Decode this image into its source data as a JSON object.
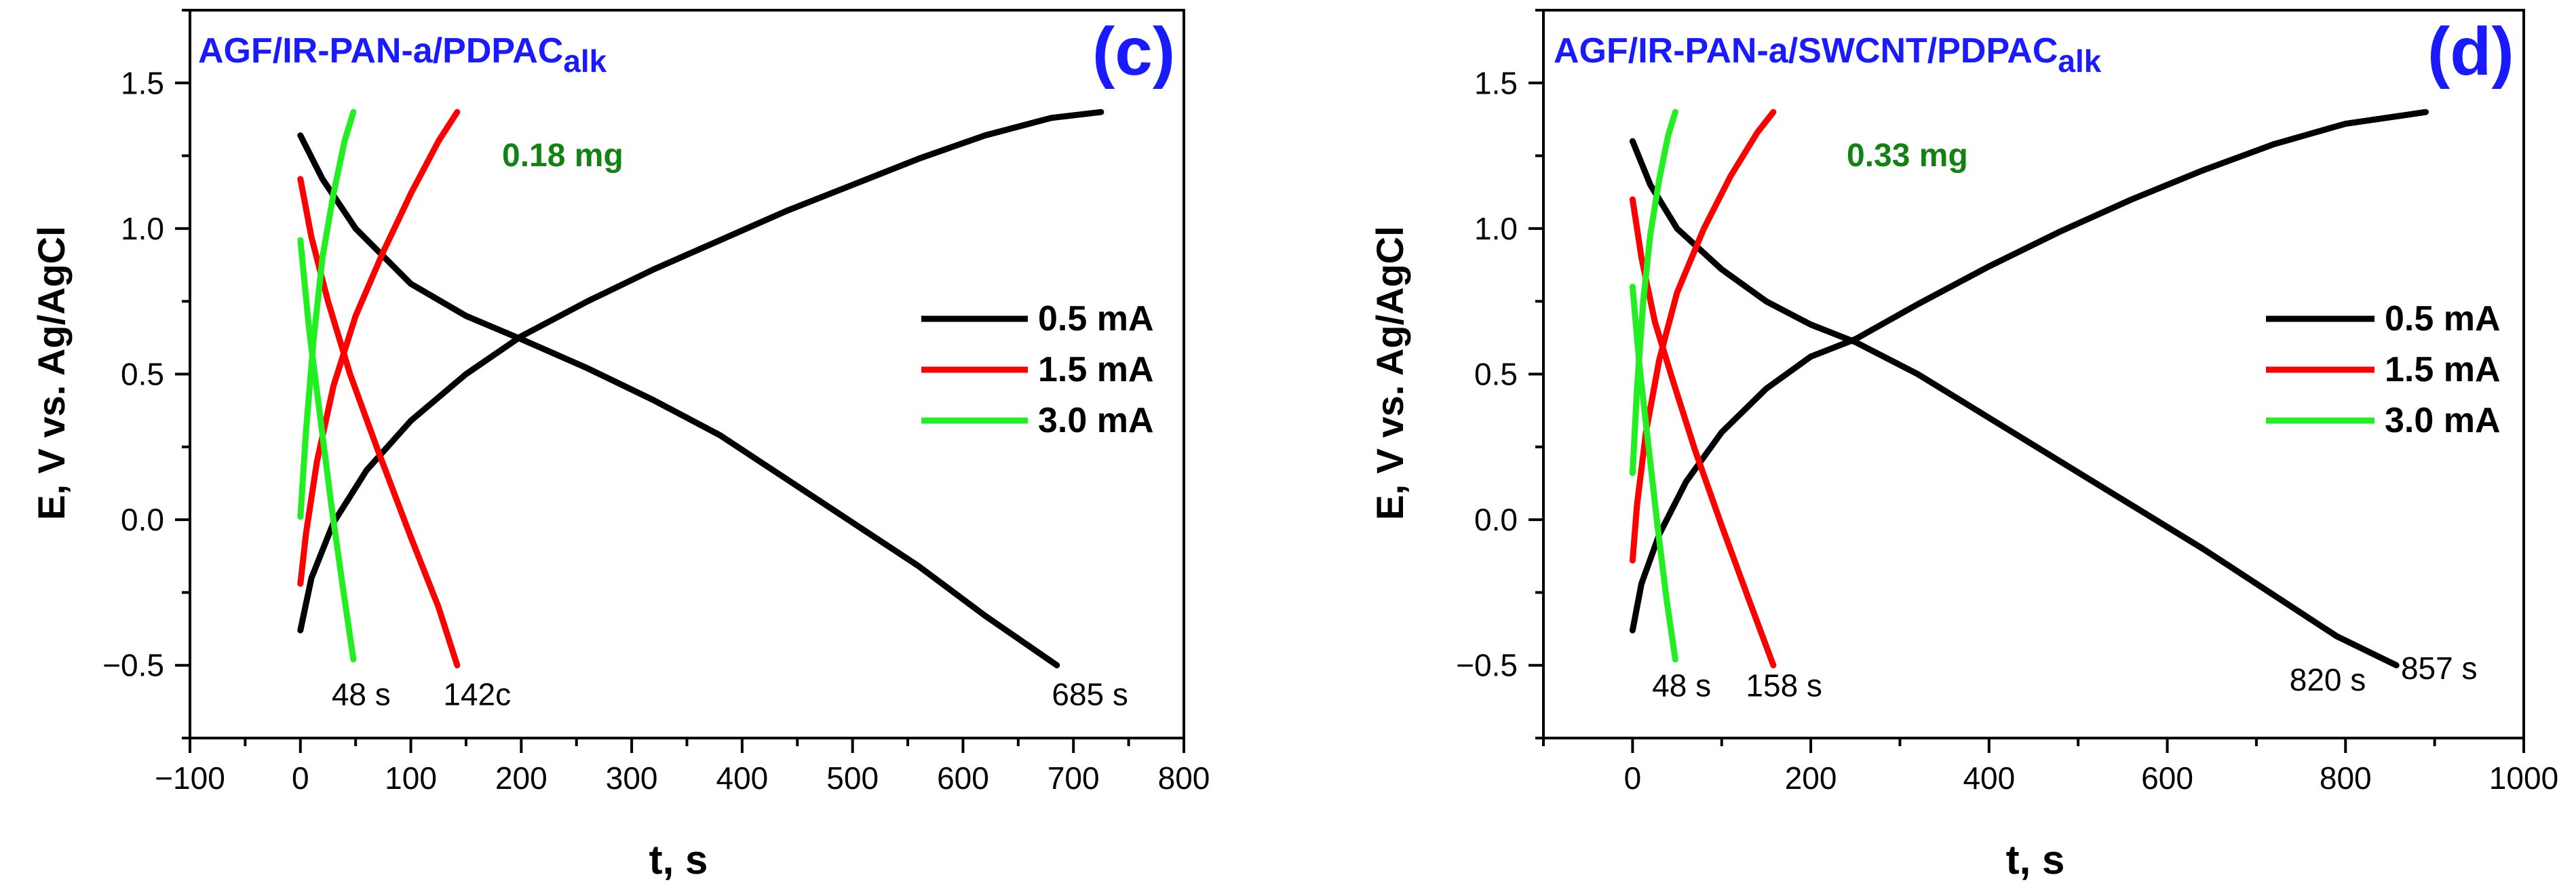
{
  "chart_data": [
    {
      "panel": "c",
      "type": "line",
      "panel_label": "(c)",
      "title": {
        "main": "AGF/IR-PAN-a/PDPAC",
        "sub": "alk"
      },
      "xlabel": "t, s",
      "ylabel": "E, V vs. Ag/AgCl",
      "xlim": [
        -100,
        800
      ],
      "ylim": [
        -0.75,
        1.75
      ],
      "xticks": [
        -100,
        0,
        100,
        200,
        300,
        400,
        500,
        600,
        700,
        800
      ],
      "xtick_labels": [
        "−100",
        "0",
        "100",
        "200",
        "300",
        "400",
        "500",
        "600",
        "700",
        "800"
      ],
      "yticks": [
        -0.5,
        0.0,
        0.5,
        1.0,
        1.5
      ],
      "ytick_labels": [
        "−0.5",
        "0.0",
        "0.5",
        "1.0",
        "1.5"
      ],
      "mass_label": "0.18 mg",
      "legend": [
        {
          "label": "0.5 mA",
          "color": "#000000"
        },
        {
          "label": "1.5 mA",
          "color": "#ff0000"
        },
        {
          "label": "3.0 mA",
          "color": "#22ee22"
        }
      ],
      "annotations": [
        {
          "text": "48 s",
          "x": 55,
          "y": -0.6
        },
        {
          "text": "142c",
          "x": 160,
          "y": -0.6
        },
        {
          "text": "685 s",
          "x": 715,
          "y": -0.6
        }
      ],
      "series": [
        {
          "name": "0.5 mA charge",
          "color": "#000000",
          "x": [
            0,
            10,
            30,
            60,
            100,
            150,
            200,
            260,
            320,
            380,
            440,
            500,
            560,
            620,
            680,
            725
          ],
          "y": [
            -0.38,
            -0.2,
            -0.01,
            0.17,
            0.34,
            0.5,
            0.63,
            0.75,
            0.86,
            0.96,
            1.06,
            1.15,
            1.24,
            1.32,
            1.38,
            1.4
          ]
        },
        {
          "name": "0.5 mA discharge",
          "color": "#000000",
          "x": [
            0,
            20,
            50,
            100,
            150,
            200,
            260,
            320,
            380,
            440,
            500,
            560,
            620,
            685
          ],
          "y": [
            1.32,
            1.17,
            1.0,
            0.81,
            0.7,
            0.62,
            0.52,
            0.41,
            0.29,
            0.14,
            -0.01,
            -0.16,
            -0.33,
            -0.5
          ]
        },
        {
          "name": "1.5 mA charge",
          "color": "#ff0000",
          "x": [
            0,
            5,
            15,
            30,
            50,
            75,
            100,
            125,
            142
          ],
          "y": [
            -0.22,
            -0.05,
            0.2,
            0.46,
            0.7,
            0.92,
            1.12,
            1.3,
            1.4
          ]
        },
        {
          "name": "1.5 mA discharge",
          "color": "#ff0000",
          "x": [
            0,
            10,
            25,
            45,
            70,
            100,
            125,
            142
          ],
          "y": [
            1.17,
            0.97,
            0.75,
            0.5,
            0.24,
            -0.06,
            -0.3,
            -0.5
          ]
        },
        {
          "name": "3.0 mA charge",
          "color": "#22ee22",
          "x": [
            0,
            5,
            12,
            20,
            30,
            40,
            48
          ],
          "y": [
            0.01,
            0.3,
            0.62,
            0.9,
            1.12,
            1.3,
            1.4
          ]
        },
        {
          "name": "3.0 mA discharge",
          "color": "#22ee22",
          "x": [
            0,
            8,
            18,
            28,
            38,
            48
          ],
          "y": [
            0.96,
            0.65,
            0.35,
            0.05,
            -0.22,
            -0.48
          ]
        }
      ]
    },
    {
      "panel": "d",
      "type": "line",
      "panel_label": "(d)",
      "title": {
        "main": "AGF/IR-PAN-a/SWCNT/PDPAC",
        "sub": "alk"
      },
      "xlabel": "t, s",
      "ylabel": "E, V vs. Ag/AgCl",
      "xlim": [
        -100,
        1000
      ],
      "ylim": [
        -0.75,
        1.75
      ],
      "xticks": [
        0,
        200,
        400,
        600,
        800,
        1000
      ],
      "xtick_labels": [
        "0",
        "200",
        "400",
        "600",
        "800",
        "1000"
      ],
      "yticks": [
        -0.5,
        0.0,
        0.5,
        1.0,
        1.5
      ],
      "ytick_labels": [
        "−0.5",
        "0.0",
        "0.5",
        "1.0",
        "1.5"
      ],
      "mass_label": "0.33 mg",
      "legend": [
        {
          "label": "0.5 mA",
          "color": "#000000"
        },
        {
          "label": "1.5 mA",
          "color": "#ff0000"
        },
        {
          "label": "3.0 mA",
          "color": "#22ee22"
        }
      ],
      "annotations": [
        {
          "text": "48 s",
          "x": 55,
          "y": -0.57
        },
        {
          "text": "158 s",
          "x": 170,
          "y": -0.57
        },
        {
          "text": "820 s",
          "x": 780,
          "y": -0.55
        },
        {
          "text": "857 s",
          "x": 905,
          "y": -0.51
        }
      ],
      "series": [
        {
          "name": "0.5 mA charge",
          "color": "#000000",
          "x": [
            0,
            10,
            30,
            60,
            100,
            150,
            200,
            250,
            320,
            400,
            480,
            560,
            640,
            720,
            800,
            890
          ],
          "y": [
            -0.38,
            -0.22,
            -0.05,
            0.13,
            0.3,
            0.45,
            0.56,
            0.62,
            0.74,
            0.87,
            0.99,
            1.1,
            1.2,
            1.29,
            1.36,
            1.4
          ]
        },
        {
          "name": "0.5 mA discharge",
          "color": "#000000",
          "x": [
            0,
            20,
            50,
            100,
            150,
            200,
            250,
            320,
            400,
            480,
            560,
            640,
            720,
            790,
            857
          ],
          "y": [
            1.3,
            1.15,
            1.0,
            0.86,
            0.75,
            0.67,
            0.61,
            0.5,
            0.35,
            0.2,
            0.05,
            -0.1,
            -0.26,
            -0.4,
            -0.5
          ]
        },
        {
          "name": "1.5 mA charge",
          "color": "#ff0000",
          "x": [
            0,
            5,
            15,
            30,
            50,
            80,
            110,
            140,
            158
          ],
          "y": [
            -0.14,
            0.05,
            0.3,
            0.55,
            0.78,
            1.0,
            1.18,
            1.33,
            1.4
          ]
        },
        {
          "name": "1.5 mA discharge",
          "color": "#ff0000",
          "x": [
            0,
            10,
            25,
            45,
            70,
            100,
            130,
            158
          ],
          "y": [
            1.1,
            0.9,
            0.68,
            0.48,
            0.24,
            -0.02,
            -0.27,
            -0.5
          ]
        },
        {
          "name": "3.0 mA charge",
          "color": "#22ee22",
          "x": [
            0,
            5,
            12,
            20,
            30,
            40,
            48
          ],
          "y": [
            0.16,
            0.45,
            0.75,
            0.98,
            1.17,
            1.32,
            1.4
          ]
        },
        {
          "name": "3.0 mA discharge",
          "color": "#22ee22",
          "x": [
            0,
            8,
            18,
            28,
            38,
            48
          ],
          "y": [
            0.8,
            0.52,
            0.25,
            -0.02,
            -0.27,
            -0.48
          ]
        }
      ]
    }
  ]
}
